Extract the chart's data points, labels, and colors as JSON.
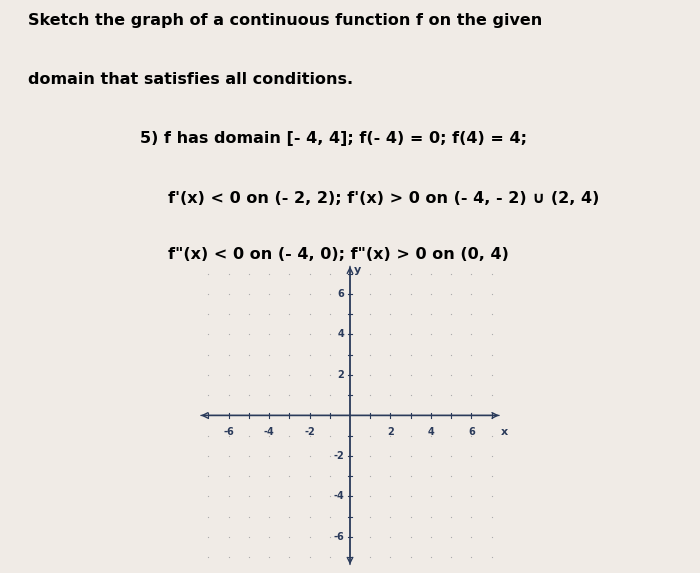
{
  "background_color": "#f0ebe6",
  "text_line1": "Sketch the graph of a continuous function f on the given",
  "text_line2": "domain that satisfies all conditions.",
  "text_line3": "5) f has domain [- 4, 4]; f(- 4) = 0; f(4) = 4;",
  "text_line4": "     f'(x) < 0 on (- 2, 2); f'(x) > 0 on (- 4, - 2) ∪ (2, 4)",
  "text_line5": "     f\"(x) < 0 on (- 4, 0); f\"(x) > 0 on (0, 4)",
  "axes_xlim": [
    -7.5,
    7.5
  ],
  "axes_ylim": [
    -7.5,
    7.5
  ],
  "x_ticks_labeled": [
    -6,
    -4,
    -2,
    2,
    4,
    6
  ],
  "y_ticks_labeled": [
    -6,
    -4,
    -2,
    2,
    4,
    6
  ],
  "x_ticks_all": [
    -7,
    -6,
    -5,
    -4,
    -3,
    -2,
    -1,
    1,
    2,
    3,
    4,
    5,
    6,
    7
  ],
  "y_ticks_all": [
    -7,
    -6,
    -5,
    -4,
    -3,
    -2,
    -1,
    1,
    2,
    3,
    4,
    5,
    6,
    7
  ],
  "x_label": "x",
  "y_label": "y",
  "grid_dot_color": "#aaaaaa",
  "axis_color": "#2a3a5a",
  "tick_label_fontsize": 7,
  "axis_label_fontsize": 8,
  "text_fontsize": 11.5
}
